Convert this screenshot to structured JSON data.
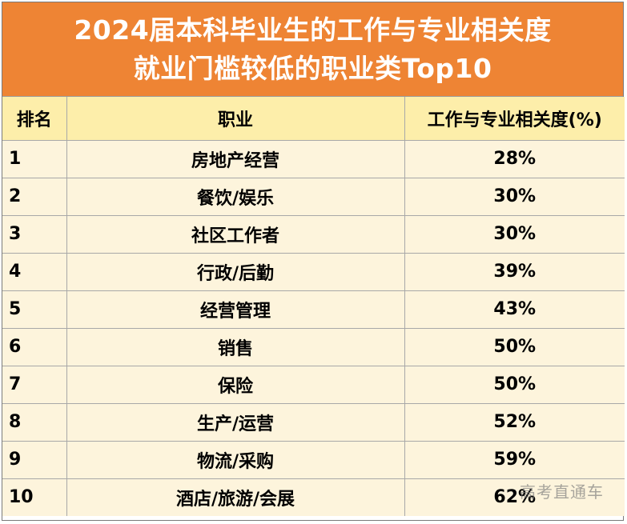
{
  "title": {
    "line1": "2024届本科毕业生的工作与专业相关度",
    "line2": "就业门槛较低的职业类Top10"
  },
  "table": {
    "headers": {
      "rank": "排名",
      "job": "职业",
      "relevance": "工作与专业相关度(%)"
    },
    "rows": [
      {
        "rank": "1",
        "job": "房地产经营",
        "relevance": "28%"
      },
      {
        "rank": "2",
        "job": "餐饮/娱乐",
        "relevance": "30%"
      },
      {
        "rank": "3",
        "job": "社区工作者",
        "relevance": "30%"
      },
      {
        "rank": "4",
        "job": "行政/后勤",
        "relevance": "39%"
      },
      {
        "rank": "5",
        "job": "经营管理",
        "relevance": "43%"
      },
      {
        "rank": "6",
        "job": "销售",
        "relevance": "50%"
      },
      {
        "rank": "7",
        "job": "保险",
        "relevance": "50%"
      },
      {
        "rank": "8",
        "job": "生产/运营",
        "relevance": "52%"
      },
      {
        "rank": "9",
        "job": "物流/采购",
        "relevance": "59%"
      },
      {
        "rank": "10",
        "job": "酒店/旅游/会展",
        "relevance": "62%"
      }
    ]
  },
  "watermark": "高考直通车",
  "colors": {
    "title_bg": "#ee8434",
    "header_bg": "#fdeeaa",
    "row_bg": "#fdf4dc"
  }
}
